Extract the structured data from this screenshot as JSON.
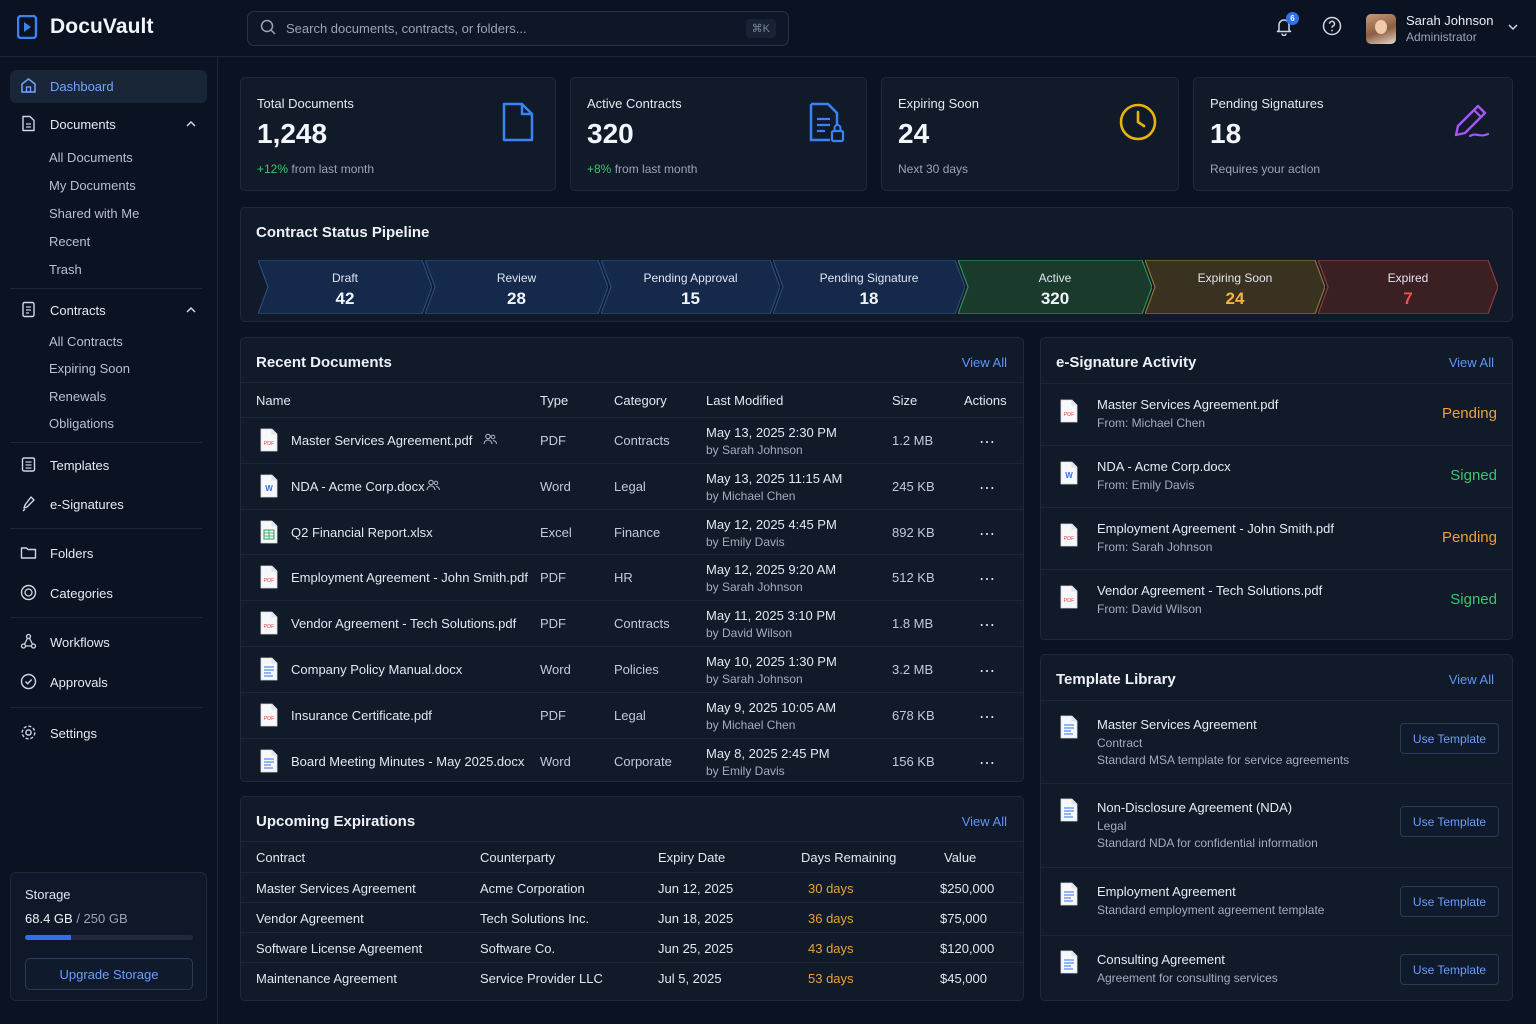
{
  "app": {
    "name": "DocuVault"
  },
  "search": {
    "placeholder": "Search documents, contracts, or folders...",
    "shortcut": "⌘K"
  },
  "header": {
    "notification_count": "6",
    "user_name": "Sarah Johnson",
    "user_role": "Administrator"
  },
  "sidebar": {
    "dashboard": "Dashboard",
    "documents": "Documents",
    "documents_sub": [
      "All Documents",
      "My Documents",
      "Shared with Me",
      "Recent",
      "Trash"
    ],
    "contracts": "Contracts",
    "contracts_sub": [
      "All Contracts",
      "Expiring Soon",
      "Renewals",
      "Obligations"
    ],
    "templates": "Templates",
    "esignatures": "e-Signatures",
    "folders": "Folders",
    "categories": "Categories",
    "workflows": "Workflows",
    "approvals": "Approvals",
    "settings": "Settings"
  },
  "storage": {
    "title": "Storage",
    "used": "68.4 GB",
    "total": "/ 250 GB",
    "used_fraction": 0.274,
    "button": "Upgrade Storage"
  },
  "stats": [
    {
      "label": "Total Documents",
      "value": "1,248",
      "delta": "+12%",
      "sub": "from last month",
      "icon": "document-icon",
      "color": "#3b82f6"
    },
    {
      "label": "Active Contracts",
      "value": "320",
      "delta": "+8%",
      "sub": "from last month",
      "icon": "contract-icon",
      "color": "#3b82f6"
    },
    {
      "label": "Expiring Soon",
      "value": "24",
      "delta": "",
      "sub": "Next 30 days",
      "icon": "clock-icon",
      "color": "#eab308"
    },
    {
      "label": "Pending Signatures",
      "value": "18",
      "delta": "",
      "sub": "Requires your action",
      "icon": "pen-icon",
      "color": "#a855f7"
    }
  ],
  "pipeline": {
    "title": "Contract Status Pipeline",
    "stages": [
      {
        "label": "Draft",
        "value": "42"
      },
      {
        "label": "Review",
        "value": "28"
      },
      {
        "label": "Pending Approval",
        "value": "15"
      },
      {
        "label": "Pending Signature",
        "value": "18"
      },
      {
        "label": "Active",
        "value": "320"
      },
      {
        "label": "Expiring Soon",
        "value": "24"
      },
      {
        "label": "Expired",
        "value": "7"
      }
    ]
  },
  "recent_documents": {
    "title": "Recent Documents",
    "view_all": "View All",
    "columns": [
      "Name",
      "Type",
      "Category",
      "Last Modified",
      "Size",
      "Actions"
    ],
    "rows": [
      {
        "name": "Master Services Agreement.pdf",
        "shared": true,
        "type": "PDF",
        "category": "Contracts",
        "date": "May 13, 2025 2:30 PM",
        "by": "by Sarah Johnson",
        "size": "1.2 MB",
        "icon": "pdf"
      },
      {
        "name": "NDA - Acme Corp.docx",
        "shared": true,
        "type": "Word",
        "category": "Legal",
        "date": "May 13, 2025 11:15 AM",
        "by": "by Michael Chen",
        "size": "245 KB",
        "icon": "word"
      },
      {
        "name": "Q2 Financial Report.xlsx",
        "shared": false,
        "type": "Excel",
        "category": "Finance",
        "date": "May 12, 2025 4:45 PM",
        "by": "by Emily Davis",
        "size": "892 KB",
        "icon": "excel"
      },
      {
        "name": "Employment Agreement - John Smith.pdf",
        "shared": false,
        "type": "PDF",
        "category": "HR",
        "date": "May 12, 2025 9:20 AM",
        "by": "by Sarah Johnson",
        "size": "512 KB",
        "icon": "pdf"
      },
      {
        "name": "Vendor Agreement - Tech Solutions.pdf",
        "shared": false,
        "type": "PDF",
        "category": "Contracts",
        "date": "May 11, 2025 3:10 PM",
        "by": "by David Wilson",
        "size": "1.8 MB",
        "icon": "pdf"
      },
      {
        "name": "Company Policy Manual.docx",
        "shared": false,
        "type": "Word",
        "category": "Policies",
        "date": "May 10, 2025 1:30 PM",
        "by": "by Sarah Johnson",
        "size": "3.2 MB",
        "icon": "doc"
      },
      {
        "name": "Insurance Certificate.pdf",
        "shared": false,
        "type": "PDF",
        "category": "Legal",
        "date": "May 9, 2025 10:05 AM",
        "by": "by Michael Chen",
        "size": "678 KB",
        "icon": "pdf"
      },
      {
        "name": "Board Meeting Minutes - May 2025.docx",
        "shared": false,
        "type": "Word",
        "category": "Corporate",
        "date": "May 8, 2025 2:45 PM",
        "by": "by Emily Davis",
        "size": "156 KB",
        "icon": "doc"
      }
    ]
  },
  "esign": {
    "title": "e-Signature Activity",
    "view_all": "View All",
    "rows": [
      {
        "name": "Master Services Agreement.pdf",
        "from": "From: Michael Chen",
        "status": "Pending",
        "icon": "pdf"
      },
      {
        "name": "NDA - Acme Corp.docx",
        "from": "From: Emily Davis",
        "status": "Signed",
        "icon": "word"
      },
      {
        "name": "Employment Agreement - John Smith.pdf",
        "from": "From: Sarah Johnson",
        "status": "Pending",
        "icon": "pdf"
      },
      {
        "name": "Vendor Agreement - Tech Solutions.pdf",
        "from": "From: David Wilson",
        "status": "Signed",
        "icon": "pdf"
      }
    ]
  },
  "templates": {
    "title": "Template Library",
    "view_all": "View All",
    "button": "Use Template",
    "rows": [
      {
        "name": "Master Services Agreement",
        "lines": [
          "Contract",
          "Standard MSA template for service agreements"
        ]
      },
      {
        "name": "Non-Disclosure Agreement (NDA)",
        "lines": [
          "Legal",
          "Standard NDA for confidential information"
        ]
      },
      {
        "name": "Employment Agreement",
        "lines": [
          "Standard employment agreement template"
        ]
      },
      {
        "name": "Consulting Agreement",
        "lines": [
          "Agreement for consulting services"
        ]
      }
    ]
  },
  "expirations": {
    "title": "Upcoming Expirations",
    "view_all": "View All",
    "columns": [
      "Contract",
      "Counterparty",
      "Expiry Date",
      "Days Remaining",
      "Value"
    ],
    "rows": [
      {
        "contract": "Master Services Agreement",
        "counterparty": "Acme Corporation",
        "date": "Jun 12, 2025",
        "days": "30 days",
        "value": "$250,000"
      },
      {
        "contract": "Vendor Agreement",
        "counterparty": "Tech Solutions Inc.",
        "date": "Jun 18, 2025",
        "days": "36 days",
        "value": "$75,000"
      },
      {
        "contract": "Software License Agreement",
        "counterparty": "Software Co.",
        "date": "Jun 25, 2025",
        "days": "43 days",
        "value": "$120,000"
      },
      {
        "contract": "Maintenance Agreement",
        "counterparty": "Service Provider LLC",
        "date": "Jul 5, 2025",
        "days": "53 days",
        "value": "$45,000"
      }
    ]
  }
}
